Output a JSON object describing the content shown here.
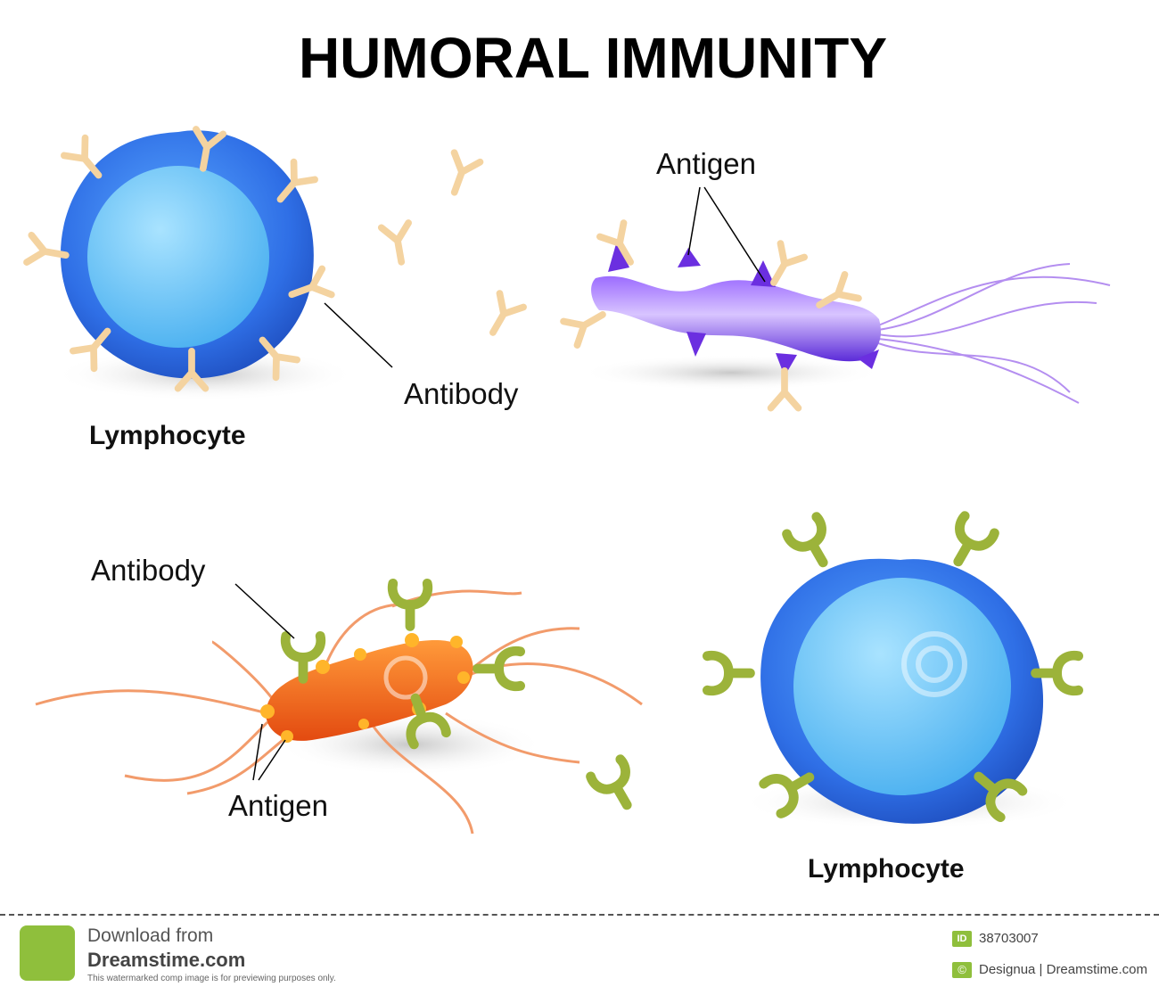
{
  "title": "HUMORAL IMMUNITY",
  "labels": {
    "antigen_top": "Antigen",
    "antibody_top": "Antibody",
    "lymphocyte_left": "Lymphocyte",
    "antibody_bottom": "Antibody",
    "antigen_bottom": "Antigen",
    "lymphocyte_right": "Lymphocyte"
  },
  "colors": {
    "lymphocyte_outer": "#2f6fe6",
    "lymphocyte_inner": "#6fc3f5",
    "antibody_beige": "#f4d3a0",
    "antibody_green": "#9cb33a",
    "bacterium_purple": "#7a3ff0",
    "bacterium_orange": "#f06a1a",
    "flagella_orange": "#f29b6b",
    "flagella_purple": "#b48ef0"
  },
  "watermark": {
    "download_from": "Download from",
    "site": "Dreamstime.com",
    "note": "This watermarked comp image is for previewing purposes only.",
    "id_label": "ID",
    "id_value": "38703007",
    "credit_symbol": "©",
    "credit": "Designua | Dreamstime.com"
  }
}
